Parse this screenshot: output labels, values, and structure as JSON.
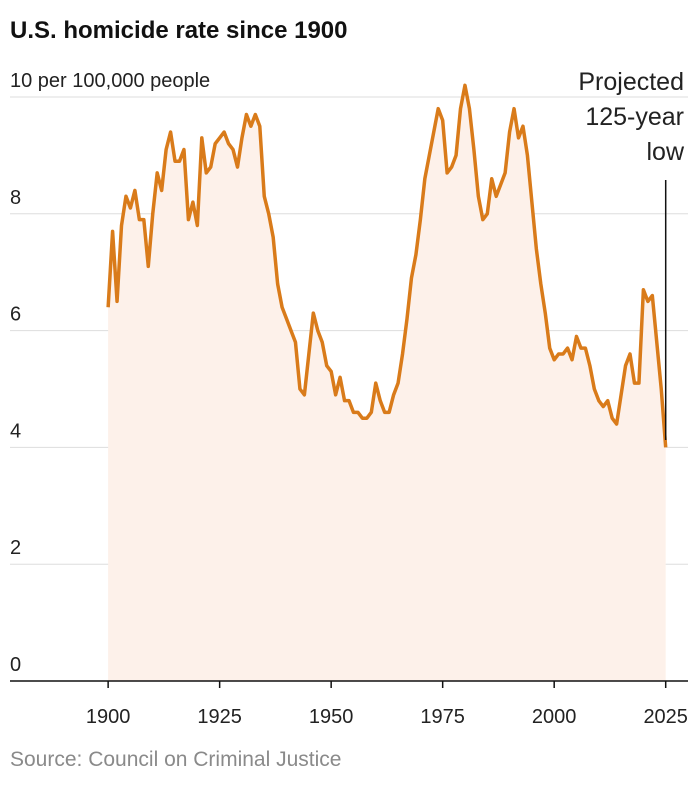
{
  "chart_data": {
    "type": "line",
    "title": "U.S. homicide rate since 1900",
    "source": "Source: Council on Criminal Justice",
    "annotation": [
      "Projected",
      "125-year",
      "low"
    ],
    "x": [
      1900,
      1901,
      1902,
      1903,
      1904,
      1905,
      1906,
      1907,
      1908,
      1909,
      1910,
      1911,
      1912,
      1913,
      1914,
      1915,
      1916,
      1917,
      1918,
      1919,
      1920,
      1921,
      1922,
      1923,
      1924,
      1925,
      1926,
      1927,
      1928,
      1929,
      1930,
      1931,
      1932,
      1933,
      1934,
      1935,
      1936,
      1937,
      1938,
      1939,
      1940,
      1941,
      1942,
      1943,
      1944,
      1945,
      1946,
      1947,
      1948,
      1949,
      1950,
      1951,
      1952,
      1953,
      1954,
      1955,
      1956,
      1957,
      1958,
      1959,
      1960,
      1961,
      1962,
      1963,
      1964,
      1965,
      1966,
      1967,
      1968,
      1969,
      1970,
      1971,
      1972,
      1973,
      1974,
      1975,
      1976,
      1977,
      1978,
      1979,
      1980,
      1981,
      1982,
      1983,
      1984,
      1985,
      1986,
      1987,
      1988,
      1989,
      1990,
      1991,
      1992,
      1993,
      1994,
      1995,
      1996,
      1997,
      1998,
      1999,
      2000,
      2001,
      2002,
      2003,
      2004,
      2005,
      2006,
      2007,
      2008,
      2009,
      2010,
      2011,
      2012,
      2013,
      2014,
      2015,
      2016,
      2017,
      2018,
      2019,
      2020,
      2021,
      2022,
      2023,
      2024,
      2025
    ],
    "values": [
      6.4,
      7.7,
      6.5,
      7.8,
      8.3,
      8.1,
      8.4,
      7.9,
      7.9,
      7.1,
      8.0,
      8.7,
      8.4,
      9.1,
      9.4,
      8.9,
      8.9,
      9.1,
      7.9,
      8.2,
      7.8,
      9.3,
      8.7,
      8.8,
      9.2,
      9.3,
      9.4,
      9.2,
      9.1,
      8.8,
      9.3,
      9.7,
      9.5,
      9.7,
      9.5,
      8.3,
      8.0,
      7.6,
      6.8,
      6.4,
      6.2,
      6.0,
      5.8,
      5.0,
      4.9,
      5.6,
      6.3,
      6.0,
      5.8,
      5.4,
      5.3,
      4.9,
      5.2,
      4.8,
      4.8,
      4.6,
      4.6,
      4.5,
      4.5,
      4.6,
      5.1,
      4.8,
      4.6,
      4.6,
      4.9,
      5.1,
      5.6,
      6.2,
      6.9,
      7.3,
      7.9,
      8.6,
      9.0,
      9.4,
      9.8,
      9.6,
      8.7,
      8.8,
      9.0,
      9.8,
      10.2,
      9.8,
      9.1,
      8.3,
      7.9,
      8.0,
      8.6,
      8.3,
      8.5,
      8.7,
      9.4,
      9.8,
      9.3,
      9.5,
      9.0,
      8.2,
      7.4,
      6.8,
      6.3,
      5.7,
      5.5,
      5.6,
      5.6,
      5.7,
      5.5,
      5.9,
      5.7,
      5.7,
      5.4,
      5.0,
      4.8,
      4.7,
      4.8,
      4.5,
      4.4,
      4.9,
      5.4,
      5.6,
      5.1,
      5.1,
      6.7,
      6.5,
      6.6,
      5.8,
      5.0,
      4.0
    ],
    "color": "#d97b1a",
    "fill": "#fdf1ea",
    "xlim": [
      1878,
      2030
    ],
    "xticks": [
      1900,
      1925,
      1950,
      1975,
      2000,
      2025
    ],
    "ylim": [
      0,
      10
    ],
    "yticks": [
      0,
      2,
      4,
      6,
      8,
      {
        "value": 10,
        "label": "10 per 100,000 people"
      }
    ],
    "grid": true
  }
}
